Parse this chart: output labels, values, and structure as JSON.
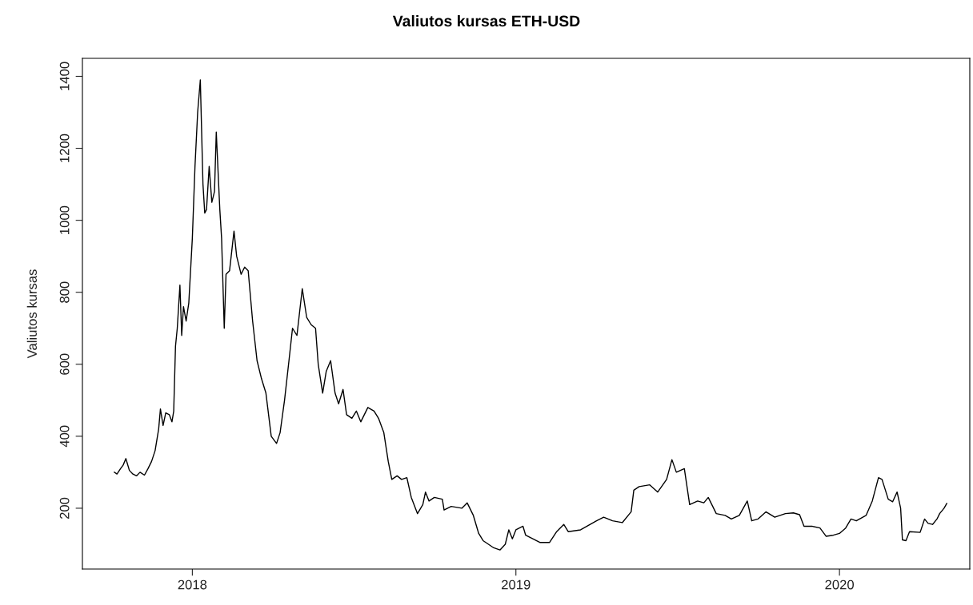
{
  "chart_data": {
    "type": "line",
    "title": "Valiutos kursas ETH-USD",
    "ylabel": "Valiutos kursas",
    "x": [
      "2017-10-05",
      "2017-10-08",
      "2017-10-12",
      "2017-10-15",
      "2017-10-18",
      "2017-10-22",
      "2017-10-26",
      "2017-10-30",
      "2017-11-03",
      "2017-11-08",
      "2017-11-12",
      "2017-11-16",
      "2017-11-20",
      "2017-11-24",
      "2017-11-26",
      "2017-11-29",
      "2017-12-02",
      "2017-12-06",
      "2017-12-09",
      "2017-12-11",
      "2017-12-13",
      "2017-12-15",
      "2017-12-18",
      "2017-12-20",
      "2017-12-22",
      "2017-12-25",
      "2017-12-28",
      "2018-01-01",
      "2018-01-04",
      "2018-01-07",
      "2018-01-10",
      "2018-01-13",
      "2018-01-15",
      "2018-01-17",
      "2018-01-20",
      "2018-01-23",
      "2018-01-26",
      "2018-01-28",
      "2018-02-01",
      "2018-02-03",
      "2018-02-06",
      "2018-02-08",
      "2018-02-12",
      "2018-02-17",
      "2018-02-20",
      "2018-02-25",
      "2018-03-01",
      "2018-03-05",
      "2018-03-10",
      "2018-03-15",
      "2018-03-20",
      "2018-03-25",
      "2018-03-31",
      "2018-04-06",
      "2018-04-10",
      "2018-04-15",
      "2018-04-20",
      "2018-04-24",
      "2018-04-29",
      "2018-05-05",
      "2018-05-10",
      "2018-05-15",
      "2018-05-20",
      "2018-05-23",
      "2018-05-28",
      "2018-06-01",
      "2018-06-06",
      "2018-06-11",
      "2018-06-15",
      "2018-06-20",
      "2018-06-24",
      "2018-06-30",
      "2018-07-05",
      "2018-07-10",
      "2018-07-18",
      "2018-07-25",
      "2018-07-30",
      "2018-08-05",
      "2018-08-10",
      "2018-08-14",
      "2018-08-20",
      "2018-08-25",
      "2018-08-31",
      "2018-09-05",
      "2018-09-12",
      "2018-09-18",
      "2018-09-21",
      "2018-09-25",
      "2018-10-01",
      "2018-10-10",
      "2018-10-12",
      "2018-10-20",
      "2018-11-01",
      "2018-11-07",
      "2018-11-14",
      "2018-11-20",
      "2018-11-25",
      "2018-12-07",
      "2018-12-14",
      "2018-12-20",
      "2018-12-24",
      "2018-12-28",
      "2019-01-01",
      "2019-01-09",
      "2019-01-12",
      "2019-01-20",
      "2019-01-28",
      "2019-02-08",
      "2019-02-16",
      "2019-02-24",
      "2019-03-01",
      "2019-03-15",
      "2019-04-02",
      "2019-04-10",
      "2019-04-20",
      "2019-05-01",
      "2019-05-11",
      "2019-05-14",
      "2019-05-20",
      "2019-06-01",
      "2019-06-10",
      "2019-06-20",
      "2019-06-26",
      "2019-07-01",
      "2019-07-10",
      "2019-07-16",
      "2019-07-25",
      "2019-08-01",
      "2019-08-06",
      "2019-08-15",
      "2019-08-25",
      "2019-09-01",
      "2019-09-10",
      "2019-09-19",
      "2019-09-24",
      "2019-10-01",
      "2019-10-10",
      "2019-10-20",
      "2019-10-26",
      "2019-11-01",
      "2019-11-10",
      "2019-11-17",
      "2019-11-22",
      "2019-12-01",
      "2019-12-10",
      "2019-12-17",
      "2019-12-25",
      "2020-01-01",
      "2020-01-08",
      "2020-01-14",
      "2020-01-20",
      "2020-01-31",
      "2020-02-07",
      "2020-02-14",
      "2020-02-18",
      "2020-02-25",
      "2020-03-01",
      "2020-03-06",
      "2020-03-10",
      "2020-03-12",
      "2020-03-16",
      "2020-03-20",
      "2020-04-01",
      "2020-04-06",
      "2020-04-10",
      "2020-04-15",
      "2020-04-20",
      "2020-04-23",
      "2020-04-28",
      "2020-05-01"
    ],
    "series": [
      {
        "color": "#000000",
        "values": [
          300,
          295,
          310,
          320,
          338,
          305,
          295,
          290,
          300,
          292,
          310,
          330,
          360,
          420,
          476,
          430,
          465,
          460,
          440,
          470,
          650,
          700,
          820,
          680,
          760,
          720,
          770,
          950,
          1150,
          1300,
          1390,
          1100,
          1020,
          1030,
          1150,
          1050,
          1080,
          1245,
          1030,
          950,
          700,
          850,
          860,
          970,
          900,
          850,
          870,
          860,
          720,
          610,
          560,
          520,
          400,
          380,
          410,
          500,
          610,
          700,
          680,
          810,
          730,
          710,
          700,
          600,
          520,
          580,
          610,
          520,
          490,
          530,
          460,
          450,
          470,
          440,
          480,
          470,
          450,
          410,
          330,
          280,
          290,
          280,
          285,
          230,
          185,
          210,
          245,
          220,
          230,
          225,
          195,
          205,
          200,
          215,
          180,
          130,
          110,
          90,
          84,
          100,
          140,
          115,
          140,
          150,
          125,
          115,
          105,
          105,
          135,
          155,
          135,
          140,
          165,
          175,
          165,
          160,
          190,
          250,
          260,
          265,
          245,
          280,
          335,
          300,
          310,
          210,
          220,
          215,
          230,
          185,
          180,
          170,
          180,
          220,
          165,
          170,
          190,
          175,
          180,
          185,
          187,
          182,
          150,
          150,
          145,
          122,
          125,
          130,
          145,
          170,
          165,
          180,
          220,
          285,
          280,
          225,
          218,
          245,
          200,
          112,
          110,
          135,
          133,
          170,
          158,
          155,
          170,
          185,
          200,
          213
        ]
      }
    ],
    "xlim": [
      "2017-08-30",
      "2020-05-27"
    ],
    "ylim": [
      31,
      1450
    ],
    "xticks": [
      {
        "value": "2018-01-01",
        "label": "2018"
      },
      {
        "value": "2019-01-01",
        "label": "2019"
      },
      {
        "value": "2020-01-01",
        "label": "2020"
      }
    ],
    "yticks": [
      200,
      400,
      600,
      800,
      1000,
      1200,
      1400
    ],
    "grid": false,
    "legend": false
  }
}
